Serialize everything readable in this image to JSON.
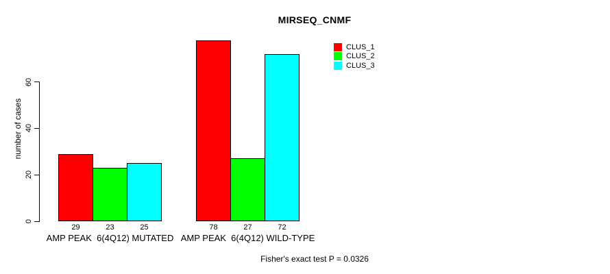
{
  "chart_data": {
    "type": "bar",
    "title": "MIRSEQ_CNMF",
    "xlabel": "",
    "ylabel": "number of cases",
    "ylim": [
      0,
      80
    ],
    "y_ticks": [
      0,
      20,
      40,
      60
    ],
    "grid": false,
    "legend_position": "top-right-inside",
    "categories": [
      "AMP PEAK  6(4Q12) MUTATED",
      "AMP PEAK  6(4Q12) WILD-TYPE"
    ],
    "category_keys": [
      "mutated",
      "wild-type"
    ],
    "series": [
      {
        "name": "CLUS_1",
        "color": "#ff0000",
        "values": [
          29,
          78
        ]
      },
      {
        "name": "CLUS_2",
        "color": "#00ff00",
        "values": [
          23,
          27
        ]
      },
      {
        "name": "CLUS_3",
        "color": "#00ffff",
        "values": [
          25,
          72
        ]
      }
    ],
    "bar_value_labels_shown": true,
    "annotation": "Fisher's exact test P = 0.0326"
  },
  "colors": {
    "background": "#ffffff",
    "axis": "#000000",
    "bar_border": "#000000",
    "text": "#000000"
  }
}
